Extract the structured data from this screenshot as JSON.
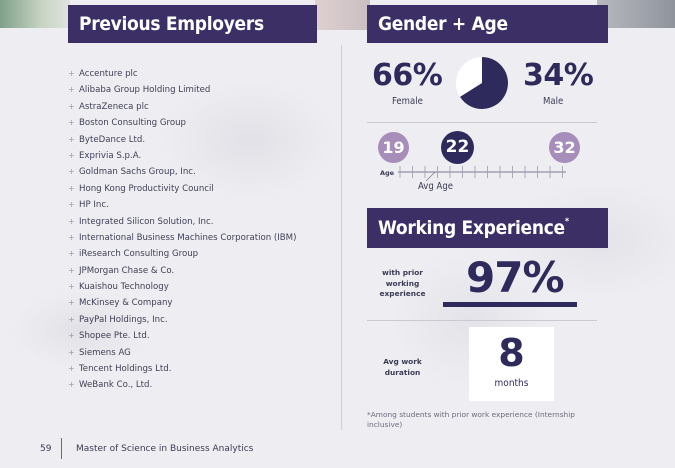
{
  "left_panel": {
    "title": "Previous Employers",
    "employers": [
      "Accenture plc",
      "Alibaba Group Holding Limited",
      "AstraZeneca plc",
      "Boston Consulting Group",
      "ByteDance Ltd.",
      "Exprivia S.p.A.",
      "Goldman Sachs Group, Inc.",
      "Hong Kong Productivity Council",
      "HP Inc.",
      "Integrated Silicon Solution, Inc.",
      "International Business Machines Corporation (IBM)",
      "iResearch Consulting Group",
      "JPMorgan Chase & Co.",
      "Kuaishou Technology",
      "McKinsey & Company",
      "PayPal Holdings, Inc.",
      "Shopee Pte. Ltd.",
      "Siemens AG",
      "Tencent Holdings Ltd.",
      "WeBank Co., Ltd."
    ],
    "bullet": "+"
  },
  "gender_age": {
    "title": "Gender + Age",
    "female_pct": "66%",
    "female_label": "Female",
    "male_pct": "34%",
    "male_label": "Male",
    "female_fraction": 0.66,
    "age_min": "19",
    "age_avg": "22",
    "age_max": "32",
    "age_word": "Age",
    "avg_age_label": "Avg Age"
  },
  "working_experience": {
    "title": "Working Experience",
    "title_mark": "*",
    "prior_label": "with prior working experience",
    "prior_pct": "97%",
    "duration_label": "Avg work duration",
    "duration_value": "8",
    "duration_unit": "months",
    "footnote": "*Among students with prior work experience (Internship inclusive)"
  },
  "footer": {
    "page_number": "59",
    "program": "Master of Science in Business Analytics"
  },
  "colors": {
    "navy": "#2e2a5c",
    "banner": "#3b2f66",
    "lavender": "#a78dba"
  }
}
